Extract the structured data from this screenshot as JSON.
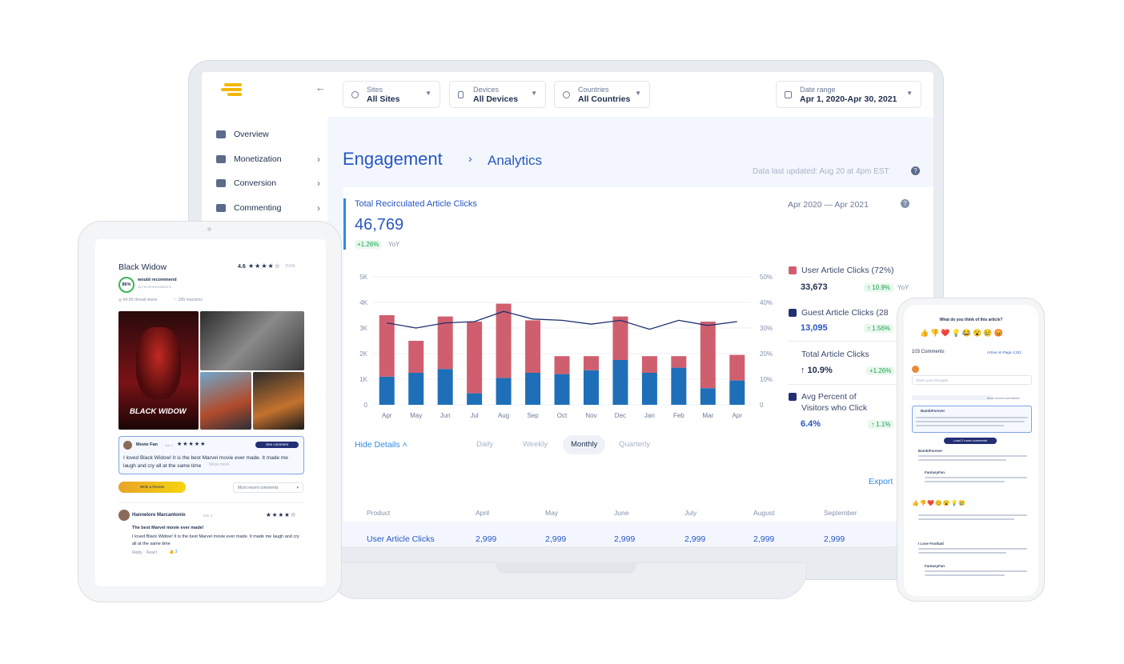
{
  "header": {
    "filters": [
      {
        "label": "Sites",
        "value": "All Sites"
      },
      {
        "label": "Devices",
        "value": "All Devices"
      },
      {
        "label": "Countries",
        "value": "All Countries"
      }
    ],
    "date_range": {
      "label": "Date range",
      "value": "Apr 1, 2020-Apr 30, 2021"
    }
  },
  "sidebar": {
    "items": [
      {
        "label": "Overview"
      },
      {
        "label": "Monetization"
      },
      {
        "label": "Conversion"
      },
      {
        "label": "Commenting"
      }
    ]
  },
  "page": {
    "title": "Engagement",
    "subtitle": "Analytics",
    "last_updated": "Data last updated: Aug 20 at 4pm EST"
  },
  "metric": {
    "title": "Total Recirculated Article Clicks",
    "value": "46,769",
    "change": "+1.26%",
    "change_label": "YoY",
    "period": "Apr 2020 — Apr 2021"
  },
  "legend": [
    {
      "label": "User Article Clicks (72%)",
      "value": "33,673",
      "change": "↑ 10.9%",
      "change_label": "YoY",
      "color": "#cf5f6f"
    },
    {
      "label": "Guest Article Clicks (28",
      "value": "13,095",
      "change": "↑ 1.56%",
      "color": "#232f74"
    },
    {
      "label": "Total Article Clicks",
      "value": "↑ 10.9%",
      "change": "+1.26%"
    },
    {
      "label": "Avg Percent of",
      "label2": "Visitors who Click",
      "value": "6.4%",
      "change": "↑ 1.1%",
      "color": "#232f74"
    }
  ],
  "chart_data": {
    "type": "bar",
    "categories": [
      "Apr",
      "May",
      "Jun",
      "Jul",
      "Aug",
      "Sep",
      "Oct",
      "Nov",
      "Dec",
      "Jan",
      "Feb",
      "Mar",
      "Apr"
    ],
    "left_ticks": [
      "5K",
      "4K",
      "3K",
      "2K",
      "1K",
      "0"
    ],
    "right_ticks": [
      "50%",
      "40%",
      "30%",
      "20%",
      "10%",
      "0"
    ],
    "ylim": [
      0,
      5000
    ],
    "y2lim": [
      0,
      50
    ],
    "series": [
      {
        "values": [
          1100,
          1250,
          1400,
          450,
          1050,
          1250,
          1200,
          1350,
          1750,
          1250,
          1450,
          650,
          950
        ],
        "color": "#1e6fb8"
      },
      {
        "values": [
          2400,
          1250,
          2050,
          2800,
          2900,
          2050,
          700,
          550,
          1700,
          650,
          450,
          2600,
          1000
        ],
        "color": "#cf5f6f"
      },
      {
        "values": [
          32,
          30,
          32,
          32.5,
          36.5,
          33.5,
          33,
          31.5,
          33,
          29.5,
          33,
          31,
          32.5
        ],
        "color": "#1d2f6f",
        "line": true
      }
    ]
  },
  "details": {
    "hide_label": "Hide Details",
    "tabs": [
      "Daily",
      "Weekly",
      "Monthly",
      "Quarterly"
    ],
    "active_tab": "Monthly",
    "export": "Export",
    "table_headers": [
      "Product",
      "April",
      "May",
      "June",
      "July",
      "August",
      "September"
    ],
    "table_row": [
      "User Article Clicks",
      "2,999",
      "2,999",
      "2,999",
      "2,999",
      "2,999",
      "2,999"
    ]
  },
  "tablet": {
    "title": "Black Widow",
    "rating": "4.6",
    "rating_count": "(534)",
    "recommend_pct": "86%",
    "recommend_text": "would recommend",
    "recommend_sub": "33 recommendations",
    "views": "64.5K thread views",
    "reactions": "265 reactions",
    "poster_text": "BLACK WIDOW",
    "comment_user": "Movie Fan",
    "comment_time": "Mar 4",
    "comment_button": "See comment",
    "comment_text": "I loved Black Widow! It is the best Marvel movie ever made. It made me laugh and cry all at the same time",
    "show_more": "Show more",
    "write_review": "Write a Review",
    "sort_label": "Most recent comments",
    "reviewer": "Hannelore Marcantonio",
    "review_time": "Mar 4",
    "review_title": "The best Marvel movie ever made!",
    "review_text": "I loved Black Widow! It is the best Marvel movie ever made. It made me laugh and cry all at the same time",
    "reply": "Reply",
    "react": "React",
    "likes": "3"
  },
  "phone": {
    "question": "What do you think of this article?",
    "comments": "103 Comments",
    "active": "Active on Page 4,321",
    "input_placeholder": "Share your thoughts",
    "user1": "BambiForever",
    "user2": "FantasyFan",
    "user3": "I Love Football",
    "user4": "FantasyFan",
    "button": "Load 2 more comments",
    "sort": "Most recent comments"
  },
  "colors": {
    "brand": "#f2b705",
    "title": "#2856c4",
    "accent": "#232f74"
  }
}
